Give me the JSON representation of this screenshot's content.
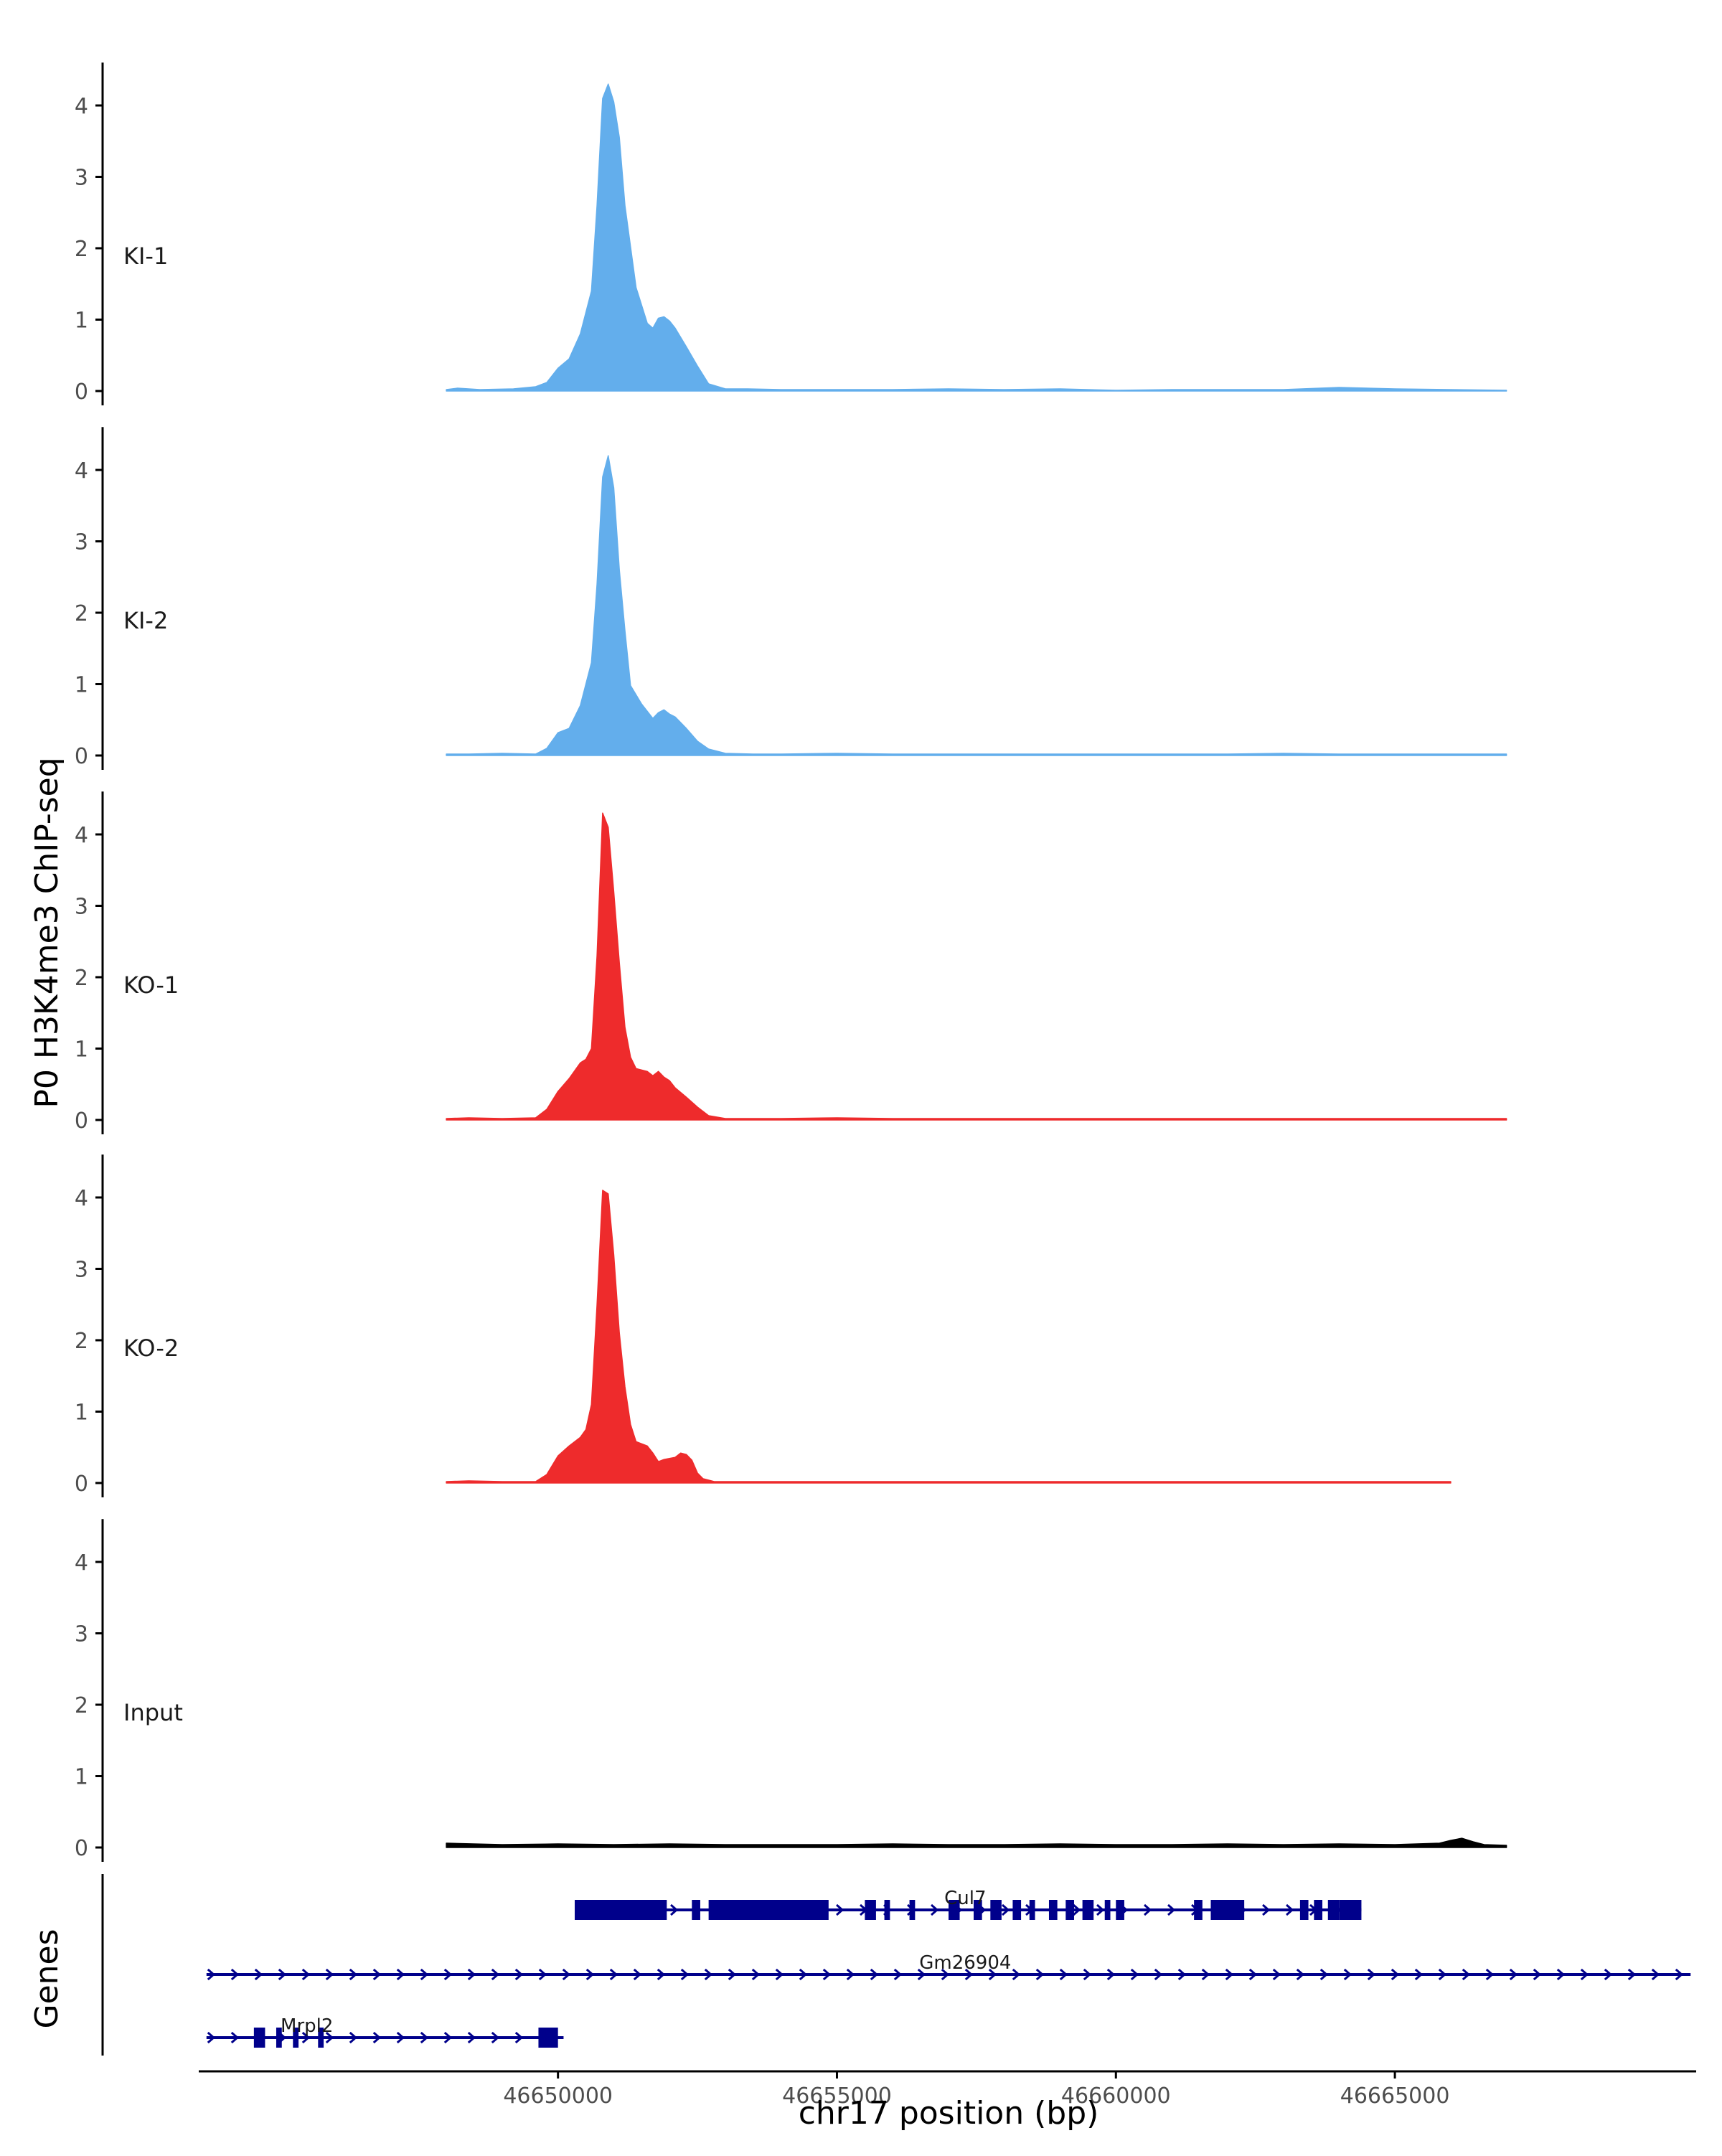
{
  "chart_data": {
    "type": "area",
    "title": "",
    "ylabel": "P0 H3K4me3 ChIP-seq",
    "xlabel": "chr17 position (bp)",
    "genes_label": "Genes",
    "x_range": [
      46643600,
      46670400
    ],
    "x_ticks": [
      46650000,
      46655000,
      46660000,
      46665000
    ],
    "x_tick_labels": [
      "46650000",
      "46655000",
      "46660000",
      "46665000"
    ],
    "ylim": [
      0,
      4.6
    ],
    "y_ticks": [
      0,
      1,
      2,
      3,
      4
    ],
    "y_tick_labels": [
      "0",
      "1",
      "2",
      "3",
      "4"
    ],
    "colors": {
      "ki": "#63AEEC",
      "ko": "#EE2B2C",
      "input": "#000000",
      "gene": "#00008B",
      "axis": "#000000"
    },
    "series": [
      {
        "name": "KI-1",
        "color": "#63AEEC",
        "x": [
          46648000,
          46648200,
          46648600,
          46649200,
          46649600,
          46649800,
          46650000,
          46650200,
          46650400,
          46650600,
          46650700,
          46650800,
          46650900,
          46651000,
          46651100,
          46651200,
          46651400,
          46651600,
          46651700,
          46651800,
          46651900,
          46652000,
          46652100,
          46652300,
          46652500,
          46652700,
          46653000,
          46653400,
          46654000,
          46655000,
          46656000,
          46657000,
          46658000,
          46659000,
          46660000,
          46661000,
          46662000,
          46663000,
          46664000,
          46665000,
          46666000,
          46667000
        ],
        "y": [
          0.02,
          0.04,
          0.02,
          0.03,
          0.06,
          0.12,
          0.32,
          0.45,
          0.8,
          1.4,
          2.6,
          4.1,
          4.3,
          4.05,
          3.55,
          2.6,
          1.45,
          0.95,
          0.88,
          1.02,
          1.04,
          0.98,
          0.88,
          0.62,
          0.35,
          0.1,
          0.03,
          0.03,
          0.02,
          0.02,
          0.02,
          0.03,
          0.02,
          0.03,
          0.01,
          0.02,
          0.02,
          0.02,
          0.05,
          0.03,
          0.02,
          0.01
        ]
      },
      {
        "name": "KI-2",
        "color": "#63AEEC",
        "x": [
          46648000,
          46648400,
          46649000,
          46649600,
          46649800,
          46650000,
          46650200,
          46650400,
          46650600,
          46650700,
          46650800,
          46650900,
          46651000,
          46651100,
          46651200,
          46651300,
          46651500,
          46651700,
          46651800,
          46651900,
          46652000,
          46652100,
          46652300,
          46652500,
          46652700,
          46653000,
          46653500,
          46654000,
          46655000,
          46656000,
          46657000,
          46658000,
          46659000,
          46660000,
          46661000,
          46662000,
          46663000,
          46664000,
          46665000,
          46666000,
          46667000
        ],
        "y": [
          0.02,
          0.02,
          0.03,
          0.02,
          0.1,
          0.32,
          0.38,
          0.7,
          1.3,
          2.4,
          3.9,
          4.2,
          3.75,
          2.6,
          1.75,
          0.98,
          0.72,
          0.52,
          0.6,
          0.64,
          0.58,
          0.54,
          0.38,
          0.2,
          0.09,
          0.03,
          0.02,
          0.02,
          0.03,
          0.02,
          0.02,
          0.02,
          0.02,
          0.02,
          0.02,
          0.02,
          0.03,
          0.02,
          0.02,
          0.02,
          0.02
        ]
      },
      {
        "name": "KO-1",
        "color": "#EE2B2C",
        "x": [
          46648000,
          46648400,
          46649000,
          46649600,
          46649800,
          46650000,
          46650200,
          46650400,
          46650500,
          46650600,
          46650700,
          46650800,
          46650900,
          46651000,
          46651100,
          46651200,
          46651300,
          46651400,
          46651600,
          46651700,
          46651800,
          46651900,
          46652000,
          46652100,
          46652300,
          46652500,
          46652700,
          46653000,
          46653500,
          46654000,
          46655000,
          46656000,
          46657000,
          46658000,
          46659000,
          46660000,
          46661000,
          46662000,
          46663000,
          46664000,
          46665000,
          46666000,
          46667000
        ],
        "y": [
          0.02,
          0.03,
          0.02,
          0.03,
          0.15,
          0.4,
          0.58,
          0.8,
          0.85,
          1.0,
          2.3,
          4.3,
          4.1,
          3.2,
          2.2,
          1.3,
          0.88,
          0.72,
          0.68,
          0.62,
          0.68,
          0.6,
          0.55,
          0.45,
          0.32,
          0.18,
          0.06,
          0.02,
          0.02,
          0.02,
          0.03,
          0.02,
          0.02,
          0.02,
          0.02,
          0.02,
          0.02,
          0.02,
          0.02,
          0.02,
          0.02,
          0.02,
          0.02
        ]
      },
      {
        "name": "KO-2",
        "color": "#EE2B2C",
        "x": [
          46648000,
          46648400,
          46649000,
          46649600,
          46649800,
          46650000,
          46650200,
          46650400,
          46650500,
          46650600,
          46650700,
          46650800,
          46650900,
          46651000,
          46651100,
          46651200,
          46651300,
          46651400,
          46651600,
          46651700,
          46651800,
          46651900,
          46652100,
          46652200,
          46652300,
          46652400,
          46652500,
          46652600,
          46652800,
          46653000,
          46653500,
          46654000,
          46655000,
          46656000,
          46657000,
          46658000,
          46659000,
          46660000,
          46661000,
          46662000,
          46663000,
          46664000,
          46665000,
          46666000
        ],
        "y": [
          0.02,
          0.03,
          0.02,
          0.02,
          0.12,
          0.38,
          0.52,
          0.64,
          0.75,
          1.1,
          2.5,
          4.1,
          4.05,
          3.2,
          2.1,
          1.35,
          0.82,
          0.58,
          0.52,
          0.42,
          0.3,
          0.33,
          0.36,
          0.42,
          0.4,
          0.32,
          0.14,
          0.06,
          0.02,
          0.02,
          0.02,
          0.02,
          0.02,
          0.02,
          0.02,
          0.02,
          0.02,
          0.02,
          0.02,
          0.02,
          0.02,
          0.02,
          0.02,
          0.02
        ]
      },
      {
        "name": "Input",
        "color": "#000000",
        "x": [
          46648000,
          46649000,
          46650000,
          46651000,
          46652000,
          46653000,
          46654000,
          46655000,
          46656000,
          46657000,
          46658000,
          46659000,
          46660000,
          46661000,
          46662000,
          46663000,
          46664000,
          46665000,
          46665800,
          46666000,
          46666200,
          46666400,
          46666600,
          46667000
        ],
        "y": [
          0.06,
          0.04,
          0.05,
          0.04,
          0.05,
          0.04,
          0.04,
          0.04,
          0.05,
          0.04,
          0.04,
          0.05,
          0.04,
          0.04,
          0.05,
          0.04,
          0.05,
          0.04,
          0.06,
          0.1,
          0.13,
          0.08,
          0.04,
          0.03
        ]
      }
    ],
    "genes": [
      {
        "name": "Cul7",
        "strand": "+",
        "start": 46650300,
        "end": 46664400,
        "exons": [
          [
            46650300,
            46651950
          ],
          [
            46652400,
            46652550
          ],
          [
            46652700,
            46654850
          ],
          [
            46655500,
            46655700
          ],
          [
            46655850,
            46655950
          ],
          [
            46656300,
            46656400
          ],
          [
            46657000,
            46657200
          ],
          [
            46657450,
            46657600
          ],
          [
            46657750,
            46657950
          ],
          [
            46658150,
            46658300
          ],
          [
            46658450,
            46658550
          ],
          [
            46658800,
            46658950
          ],
          [
            46659100,
            46659250
          ],
          [
            46659400,
            46659600
          ],
          [
            46659800,
            46659900
          ],
          [
            46660000,
            46660150
          ],
          [
            46661400,
            46661550
          ],
          [
            46661700,
            46662300
          ],
          [
            46663300,
            46663450
          ],
          [
            46663550,
            46663700
          ],
          [
            46663800,
            46664000
          ],
          [
            46664000,
            46664400
          ]
        ]
      },
      {
        "name": "Gm26904",
        "strand": "+",
        "start": 46643700,
        "end": 46670300,
        "exons": []
      },
      {
        "name": "Mrpl2",
        "strand": "+",
        "start": 46643700,
        "end": 46650100,
        "exons": [
          [
            46644550,
            46644750
          ],
          [
            46644950,
            46645050
          ],
          [
            46645250,
            46645350
          ],
          [
            46645700,
            46645800
          ],
          [
            46649650,
            46650000
          ]
        ]
      }
    ]
  }
}
